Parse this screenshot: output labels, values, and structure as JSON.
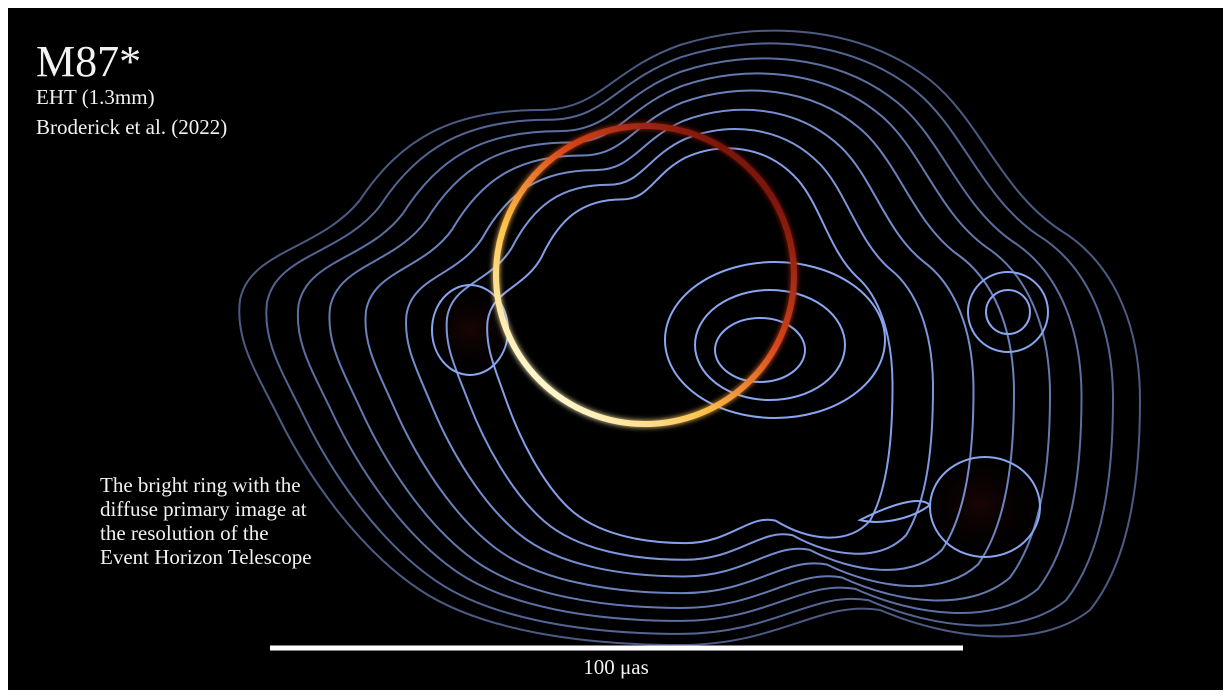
{
  "title": "M87*",
  "subtitle": [
    "EHT (1.3mm)",
    "Broderick et al. (2022)"
  ],
  "caption": [
    "The bright ring with the",
    "diffuse primary image at",
    "the resolution of the",
    "Event Horizon Telescope"
  ],
  "scale_bar_label": "100 μas"
}
